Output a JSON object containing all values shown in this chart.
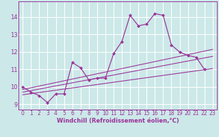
{
  "xlabel": "Windchill (Refroidissement éolien,°C)",
  "bg_color": "#cce8e8",
  "grid_color": "#ffffff",
  "line_color": "#993399",
  "xlim": [
    -0.5,
    23.5
  ],
  "ylim": [
    8.7,
    14.9
  ],
  "yticks": [
    9,
    10,
    11,
    12,
    13,
    14
  ],
  "xticks": [
    0,
    1,
    2,
    3,
    4,
    5,
    6,
    7,
    8,
    9,
    10,
    11,
    12,
    13,
    14,
    15,
    16,
    17,
    18,
    19,
    20,
    21,
    22,
    23
  ],
  "main_x": [
    0,
    1,
    2,
    3,
    4,
    5,
    6,
    7,
    8,
    9,
    10,
    11,
    12,
    13,
    14,
    15,
    16,
    17,
    18,
    19,
    20,
    21,
    22
  ],
  "main_y": [
    10.0,
    9.7,
    9.5,
    9.1,
    9.6,
    9.6,
    11.4,
    11.1,
    10.4,
    10.5,
    10.5,
    11.9,
    12.6,
    14.1,
    13.5,
    13.6,
    14.2,
    14.1,
    12.4,
    12.0,
    11.8,
    11.7,
    11.0
  ],
  "line1_x": [
    0,
    23
  ],
  "line1_y": [
    9.55,
    11.05
  ],
  "line2_x": [
    0,
    23
  ],
  "line2_y": [
    9.7,
    11.75
  ],
  "line3_x": [
    0,
    23
  ],
  "line3_y": [
    9.85,
    12.15
  ],
  "xlabel_fontsize": 6,
  "xlabel_fontweight": "bold",
  "tick_fontsize": 5.5
}
